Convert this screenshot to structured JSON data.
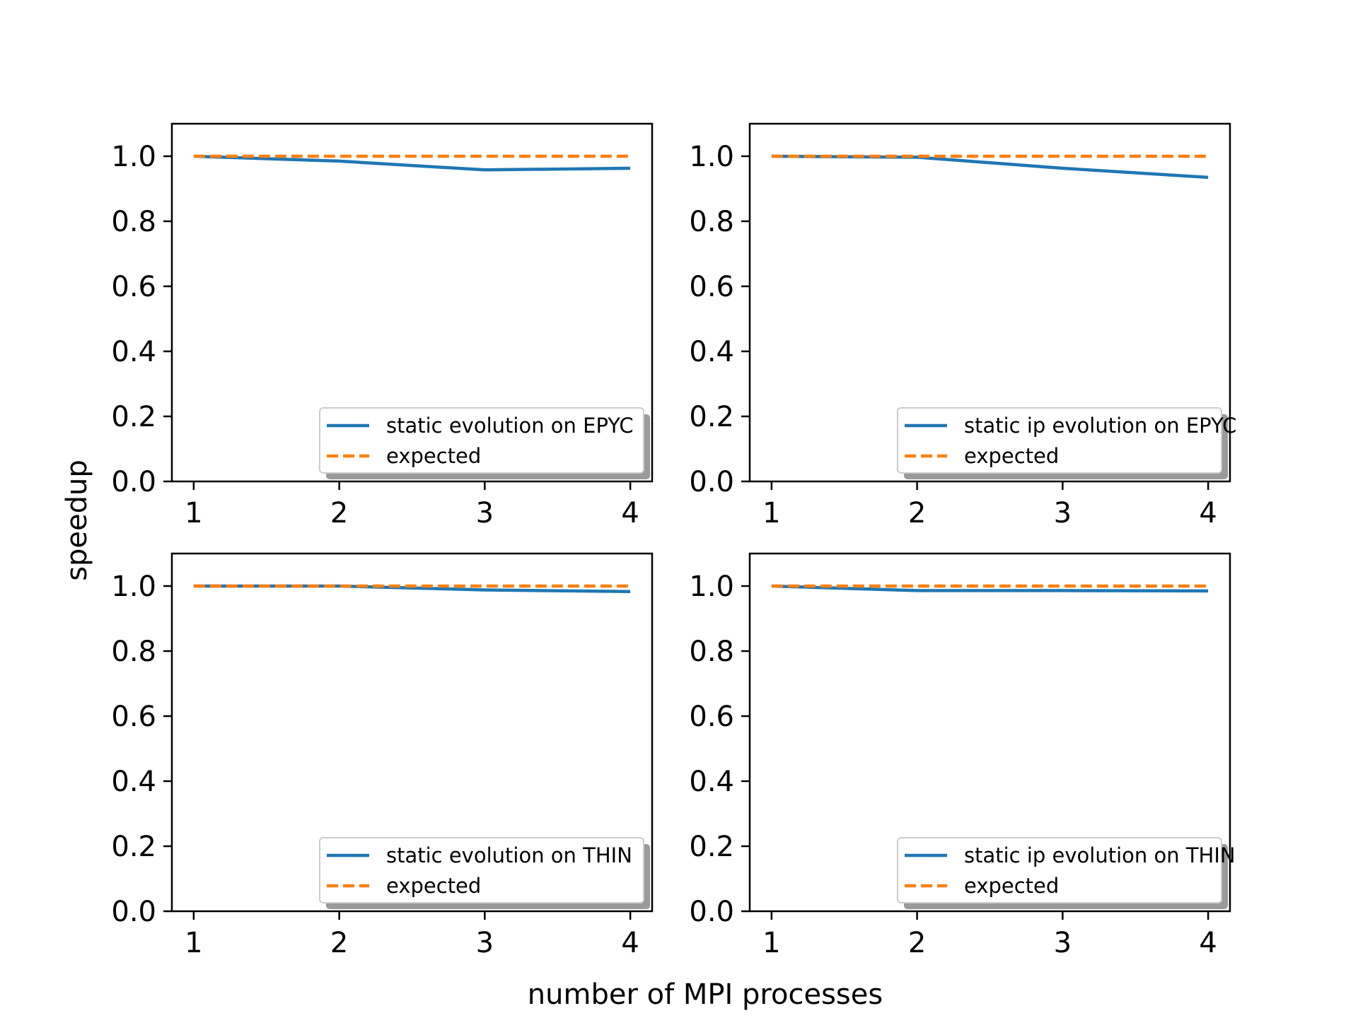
{
  "figure": {
    "xlabel": "number of MPI processes",
    "ylabel": "speedup"
  },
  "colors": {
    "measured": "#1f77b4",
    "expected": "#ff7f0e"
  },
  "chart_data": [
    {
      "type": "line",
      "title": "",
      "x": [
        1,
        2,
        3,
        4
      ],
      "xticks": [
        "1",
        "2",
        "3",
        "4"
      ],
      "xlim": [
        0.85,
        4.15
      ],
      "ylim": [
        0.0,
        1.1
      ],
      "yticks": [
        "0.0",
        "0.2",
        "0.4",
        "0.6",
        "0.8",
        "1.0"
      ],
      "grid": false,
      "legend_position": "lower right",
      "series": [
        {
          "name": "static evolution on EPYC",
          "values": [
            1.0,
            0.985,
            0.958,
            0.963
          ],
          "style": "solid"
        },
        {
          "name": "expected",
          "values": [
            1.0,
            1.0,
            1.0,
            1.0
          ],
          "style": "dashed"
        }
      ]
    },
    {
      "type": "line",
      "title": "",
      "x": [
        1,
        2,
        3,
        4
      ],
      "xticks": [
        "1",
        "2",
        "3",
        "4"
      ],
      "xlim": [
        0.85,
        4.15
      ],
      "ylim": [
        0.0,
        1.1
      ],
      "yticks": [
        "0.0",
        "0.2",
        "0.4",
        "0.6",
        "0.8",
        "1.0"
      ],
      "grid": false,
      "legend_position": "lower right",
      "series": [
        {
          "name": "static ip evolution on EPYC",
          "values": [
            1.0,
            0.997,
            0.963,
            0.935
          ],
          "style": "solid"
        },
        {
          "name": "expected",
          "values": [
            1.0,
            1.0,
            1.0,
            1.0
          ],
          "style": "dashed"
        }
      ]
    },
    {
      "type": "line",
      "title": "",
      "x": [
        1,
        2,
        3,
        4
      ],
      "xticks": [
        "1",
        "2",
        "3",
        "4"
      ],
      "xlim": [
        0.85,
        4.15
      ],
      "ylim": [
        0.0,
        1.1
      ],
      "yticks": [
        "0.0",
        "0.2",
        "0.4",
        "0.6",
        "0.8",
        "1.0"
      ],
      "grid": false,
      "legend_position": "lower right",
      "series": [
        {
          "name": "static evolution on THIN",
          "values": [
            1.0,
            1.0,
            0.988,
            0.983
          ],
          "style": "solid"
        },
        {
          "name": "expected",
          "values": [
            1.0,
            1.0,
            1.0,
            1.0
          ],
          "style": "dashed"
        }
      ]
    },
    {
      "type": "line",
      "title": "",
      "x": [
        1,
        2,
        3,
        4
      ],
      "xticks": [
        "1",
        "2",
        "3",
        "4"
      ],
      "xlim": [
        0.85,
        4.15
      ],
      "ylim": [
        0.0,
        1.1
      ],
      "yticks": [
        "0.0",
        "0.2",
        "0.4",
        "0.6",
        "0.8",
        "1.0"
      ],
      "grid": false,
      "legend_position": "lower right",
      "series": [
        {
          "name": "static ip evolution on THIN",
          "values": [
            1.0,
            0.986,
            0.986,
            0.985
          ],
          "style": "solid"
        },
        {
          "name": "expected",
          "values": [
            1.0,
            1.0,
            1.0,
            1.0
          ],
          "style": "dashed"
        }
      ]
    }
  ]
}
